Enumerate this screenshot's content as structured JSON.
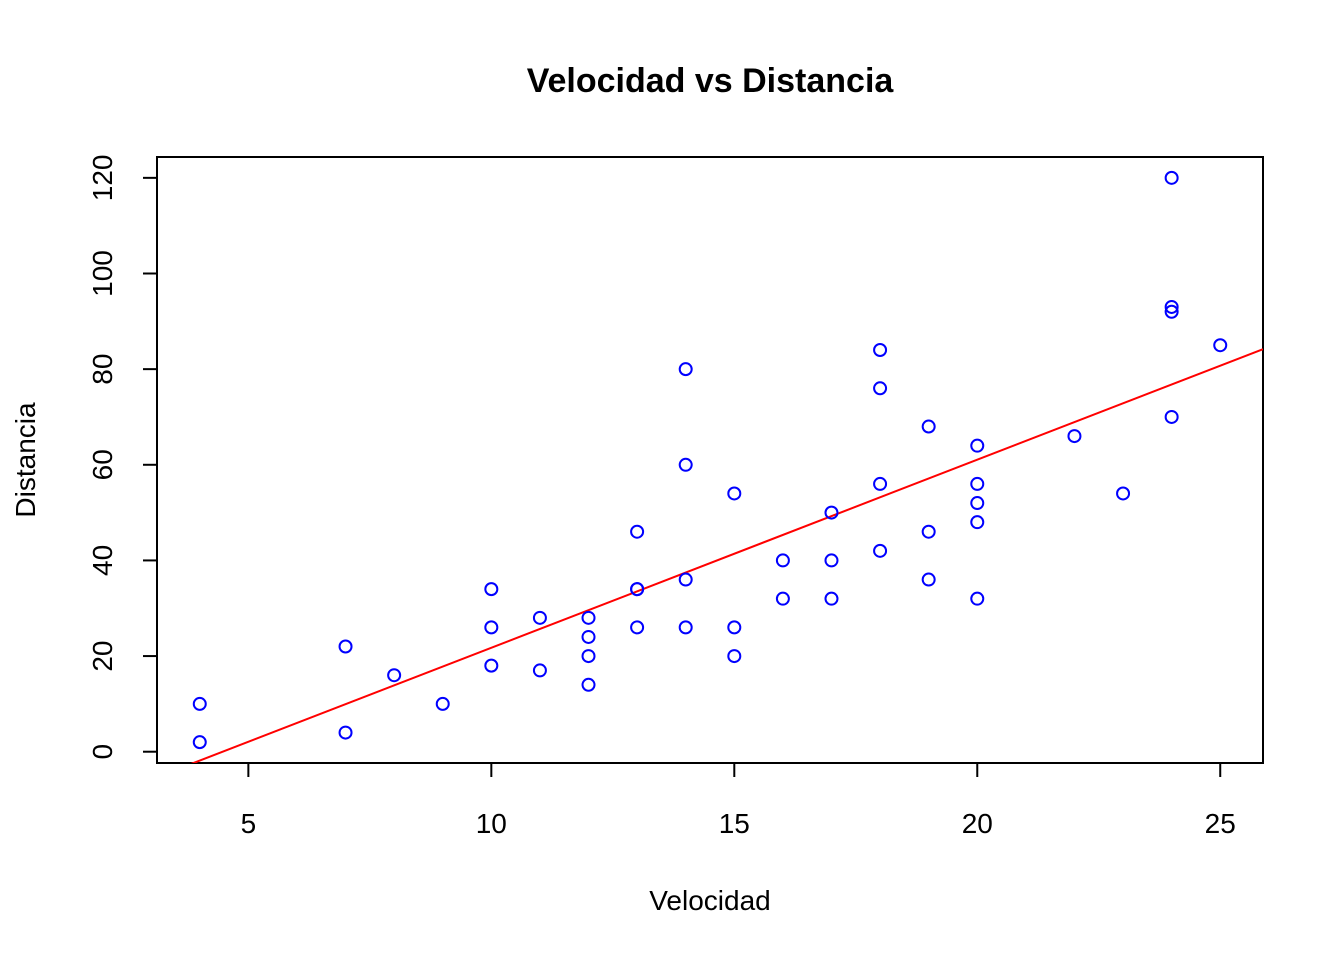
{
  "chart_data": {
    "type": "scatter",
    "title": "Velocidad vs Distancia",
    "xlabel": "Velocidad",
    "ylabel": "Distancia",
    "xlim": [
      3.12,
      25.88
    ],
    "ylim": [
      -2.36,
      124.36
    ],
    "x_ticks": [
      5,
      10,
      15,
      20,
      25
    ],
    "y_ticks": [
      0,
      20,
      40,
      60,
      80,
      100,
      120
    ],
    "grid": false,
    "legend": "none",
    "point_color": "#0000FF",
    "line_color": "#FF0000",
    "points": [
      [
        4,
        2
      ],
      [
        4,
        10
      ],
      [
        7,
        4
      ],
      [
        7,
        22
      ],
      [
        8,
        16
      ],
      [
        9,
        10
      ],
      [
        10,
        18
      ],
      [
        10,
        26
      ],
      [
        10,
        34
      ],
      [
        11,
        17
      ],
      [
        11,
        28
      ],
      [
        12,
        14
      ],
      [
        12,
        20
      ],
      [
        12,
        24
      ],
      [
        12,
        28
      ],
      [
        13,
        26
      ],
      [
        13,
        34
      ],
      [
        13,
        34
      ],
      [
        13,
        46
      ],
      [
        14,
        26
      ],
      [
        14,
        36
      ],
      [
        14,
        60
      ],
      [
        14,
        80
      ],
      [
        15,
        20
      ],
      [
        15,
        26
      ],
      [
        15,
        54
      ],
      [
        16,
        32
      ],
      [
        16,
        40
      ],
      [
        17,
        32
      ],
      [
        17,
        40
      ],
      [
        17,
        50
      ],
      [
        18,
        42
      ],
      [
        18,
        56
      ],
      [
        18,
        76
      ],
      [
        18,
        84
      ],
      [
        19,
        36
      ],
      [
        19,
        46
      ],
      [
        19,
        68
      ],
      [
        20,
        32
      ],
      [
        20,
        48
      ],
      [
        20,
        52
      ],
      [
        20,
        56
      ],
      [
        20,
        64
      ],
      [
        22,
        66
      ],
      [
        23,
        54
      ],
      [
        24,
        70
      ],
      [
        24,
        92
      ],
      [
        24,
        93
      ],
      [
        24,
        120
      ],
      [
        25,
        85
      ]
    ],
    "regression": {
      "intercept": -17.579,
      "slope": 3.932
    }
  }
}
